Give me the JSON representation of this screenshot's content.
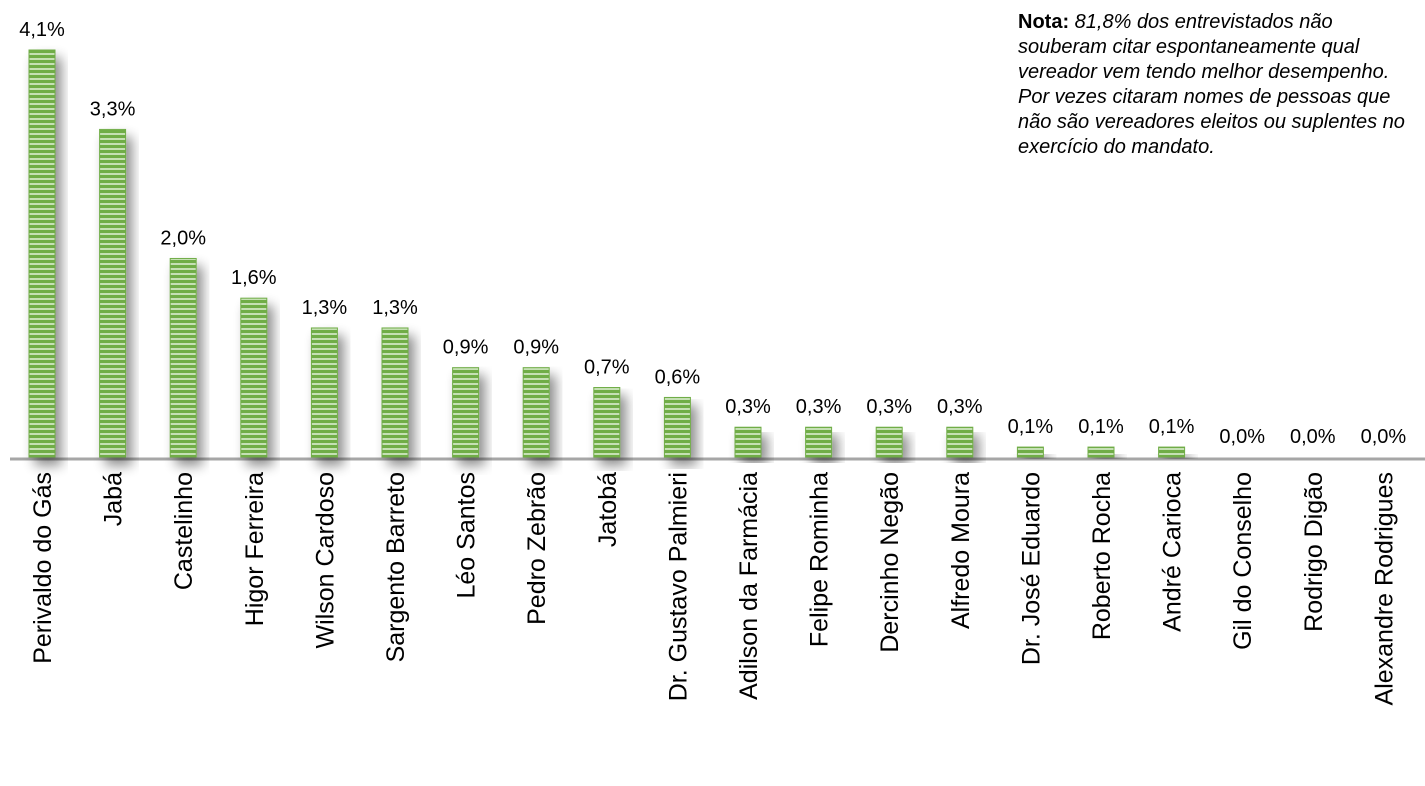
{
  "chart_data": {
    "type": "bar",
    "categories": [
      "Perivaldo do Gás",
      "Jabá",
      "Castelinho",
      "Higor Ferreira",
      "Wilson Cardoso",
      "Sargento Barreto",
      "Léo Santos",
      "Pedro Zebrão",
      "Jatobá",
      "Dr. Gustavo Palmieri",
      "Adilson da Farmácia",
      "Felipe Rominha",
      "Dercinho Negão",
      "Alfredo Moura",
      "Dr. José Eduardo",
      "Roberto Rocha",
      "André Carioca",
      "Gil do Conselho",
      "Rodrigo Digão",
      "Alexandre Rodrigues"
    ],
    "values": [
      4.1,
      3.3,
      2.0,
      1.6,
      1.3,
      1.3,
      0.9,
      0.9,
      0.7,
      0.6,
      0.3,
      0.3,
      0.3,
      0.3,
      0.1,
      0.1,
      0.1,
      0.0,
      0.0,
      0.0
    ],
    "value_labels": [
      "4,1%",
      "3,3%",
      "2,0%",
      "1,6%",
      "1,3%",
      "1,3%",
      "0,9%",
      "0,9%",
      "0,7%",
      "0,6%",
      "0,3%",
      "0,3%",
      "0,3%",
      "0,3%",
      "0,1%",
      "0,1%",
      "0,1%",
      "0,0%",
      "0,0%",
      "0,0%"
    ],
    "color": "#70ad47"
  },
  "note": {
    "label": "Nota:",
    "text": "81,8% dos entrevistados não souberam citar espontaneamente qual vereador vem tendo melhor desempenho. Por vezes citaram nomes de pessoas que não são vereadores eleitos ou suplentes no exercício do mandato."
  }
}
